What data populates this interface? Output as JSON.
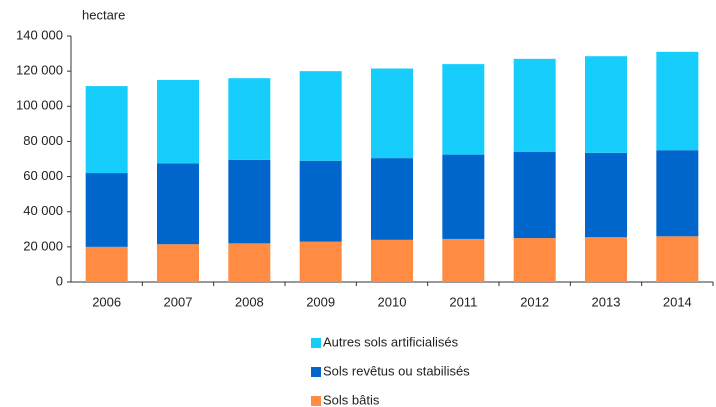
{
  "chart_data": {
    "type": "stacked_bar",
    "y_label": "hectare",
    "categories": [
      "2006",
      "2007",
      "2008",
      "2009",
      "2010",
      "2011",
      "2012",
      "2013",
      "2014"
    ],
    "series": [
      {
        "name": "Sols bâtis",
        "color": "#ff8c42",
        "values": [
          20000,
          21500,
          22000,
          23000,
          24000,
          24500,
          25000,
          25500,
          26000
        ]
      },
      {
        "name": "Sols revêtus ou stabilisés",
        "color": "#0066cc",
        "values": [
          42000,
          46000,
          47500,
          46000,
          46500,
          48000,
          49000,
          48000,
          49000
        ]
      },
      {
        "name": "Autres sols artificialisés",
        "color": "#17cdfb",
        "values": [
          49500,
          47500,
          46500,
          51000,
          51000,
          51500,
          53000,
          55000,
          56000
        ]
      }
    ],
    "ylim": [
      0,
      140000
    ],
    "yticks": [
      0,
      {
        "value": 20000,
        "label": "20 000"
      },
      {
        "value": 40000,
        "label": "40 000"
      },
      {
        "value": 60000,
        "label": "60 000"
      },
      {
        "value": 80000,
        "label": "80 000"
      },
      {
        "value": 100000,
        "label": "100 000"
      },
      {
        "value": 120000,
        "label": "120 000"
      },
      {
        "value": 140000,
        "label": "140 000"
      }
    ],
    "grid": false,
    "legend": "bottom"
  }
}
